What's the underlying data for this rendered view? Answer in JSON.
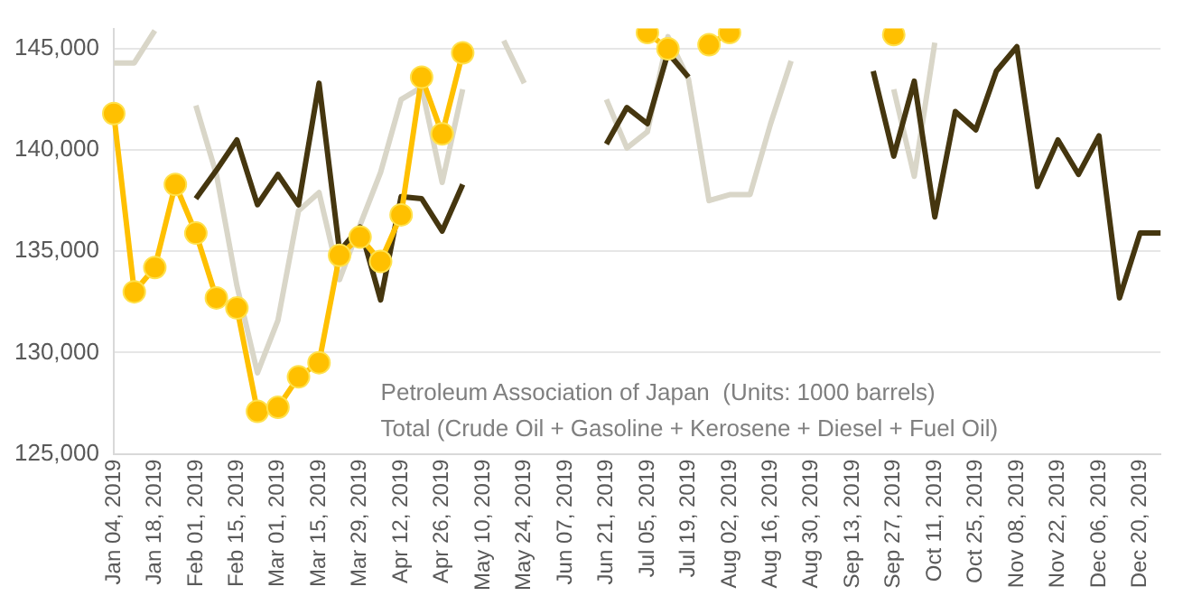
{
  "chart_data": {
    "type": "line",
    "categories": [
      "Jan 04, 2019",
      null,
      "Jan 18, 2019",
      null,
      "Feb 01, 2019",
      null,
      "Feb 15, 2019",
      null,
      "Mar 01, 2019",
      null,
      "Mar 15, 2019",
      null,
      "Mar 29, 2019",
      null,
      "Apr 12, 2019",
      null,
      "Apr 26, 2019",
      null,
      "May 10, 2019",
      null,
      "May 24, 2019",
      null,
      "Jun 07, 2019",
      null,
      "Jun 21, 2019",
      null,
      "Jul 05, 2019",
      null,
      "Jul 19, 2019",
      null,
      "Aug 02, 2019",
      null,
      "Aug 16, 2019",
      null,
      "Aug 30, 2019",
      null,
      "Sep 13, 2019",
      null,
      "Sep 27, 2019",
      null,
      "Oct 11, 2019",
      null,
      "Oct 25, 2019",
      null,
      "Nov 08, 2019",
      null,
      "Nov 22, 2019",
      null,
      "Dec 06, 2019",
      null,
      "Dec 20, 2019",
      null
    ],
    "series": [
      {
        "color": "#ffc000",
        "marker": "circle",
        "values": [
          141800,
          133000,
          134200,
          138300,
          135900,
          132700,
          132200,
          127100,
          127300,
          128800,
          129500,
          134800,
          135700,
          134500,
          136800,
          143600,
          140800,
          144800,
          null,
          null,
          null,
          null,
          null,
          null,
          null,
          null,
          145800,
          145000,
          null,
          145200,
          145800,
          null,
          null,
          null,
          null,
          null,
          null,
          null,
          145700,
          null,
          null,
          null,
          null,
          null,
          null,
          null,
          null,
          null,
          null,
          null,
          null,
          null
        ]
      },
      {
        "color": "#45360f",
        "marker": "none",
        "values": [
          null,
          null,
          null,
          null,
          137600,
          139000,
          140500,
          137300,
          138800,
          137300,
          143300,
          135000,
          136200,
          132600,
          137700,
          137600,
          136000,
          138300,
          null,
          null,
          null,
          null,
          null,
          null,
          140300,
          142100,
          141300,
          144800,
          143600,
          null,
          null,
          null,
          null,
          null,
          null,
          null,
          null,
          143900,
          139700,
          143400,
          136700,
          141900,
          141000,
          143900,
          145100,
          138200,
          140500,
          138800,
          140700,
          132700,
          135900,
          135900
        ]
      },
      {
        "color": "#d9d6c8",
        "marker": "none",
        "values": [
          144300,
          144300,
          145900,
          null,
          142200,
          138800,
          133300,
          129000,
          131600,
          137000,
          137900,
          133600,
          136300,
          138900,
          142500,
          143100,
          138400,
          143000,
          null,
          145400,
          143300,
          null,
          null,
          null,
          142500,
          140100,
          140900,
          145600,
          143500,
          137500,
          137800,
          137800,
          141300,
          144400,
          null,
          null,
          null,
          null,
          143000,
          138700,
          145300,
          null,
          null,
          null,
          null,
          null,
          null,
          null,
          null,
          null,
          null,
          null
        ]
      }
    ],
    "ylim": [
      125000,
      146000
    ],
    "yticks": [
      {
        "value": 125000,
        "label": "125,000"
      },
      {
        "value": 130000,
        "label": "130,000"
      },
      {
        "value": 135000,
        "label": "135,000"
      },
      {
        "value": 140000,
        "label": "140,000"
      },
      {
        "value": 145000,
        "label": "145,000"
      }
    ],
    "grid": "y",
    "annotations": [
      "Petroleum Association of Japan  (Units: 1000 barrels)",
      "Total (Crude Oil + Gasoline + Kerosene + Diesel + Fuel Oil)"
    ]
  }
}
